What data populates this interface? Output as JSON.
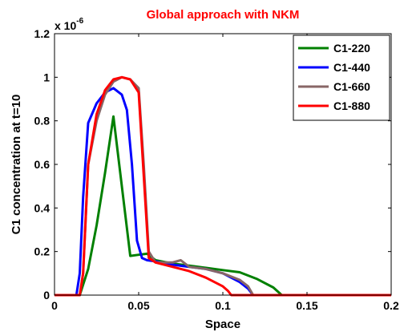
{
  "chart_data": {
    "type": "line",
    "title": "Global approach with NKM",
    "xlabel": "Space",
    "ylabel": "C1 concentration at t=10",
    "y_multiplier_label": "x 10",
    "y_multiplier_exponent": "-6",
    "xlim": [
      0,
      0.2
    ],
    "ylim": [
      0,
      1.2
    ],
    "x_ticks": [
      0,
      0.05,
      0.1,
      0.15,
      0.2
    ],
    "x_tick_labels": [
      "0",
      "0.05",
      "0.1",
      "0.15",
      "0.2"
    ],
    "y_ticks": [
      0,
      0.2,
      0.4,
      0.6,
      0.8,
      1.0,
      1.2
    ],
    "y_tick_labels": [
      "0",
      "0.2",
      "0.4",
      "0.6",
      "0.8",
      "1",
      "1.2"
    ],
    "legend_position": "top-right",
    "series": [
      {
        "name": "C1-220",
        "color": "#008000",
        "x": [
          0,
          0.015,
          0.02,
          0.025,
          0.03,
          0.035,
          0.04,
          0.045,
          0.05,
          0.055,
          0.06,
          0.07,
          0.08,
          0.09,
          0.1,
          0.11,
          0.12,
          0.13,
          0.135,
          0.2
        ],
        "y": [
          0,
          0,
          0.12,
          0.32,
          0.56,
          0.82,
          0.5,
          0.18,
          0.185,
          0.19,
          0.16,
          0.145,
          0.135,
          0.125,
          0.115,
          0.105,
          0.075,
          0.035,
          0,
          0
        ]
      },
      {
        "name": "C1-440",
        "color": "#0000ff",
        "x": [
          0,
          0.013,
          0.015,
          0.017,
          0.02,
          0.025,
          0.03,
          0.035,
          0.04,
          0.043,
          0.046,
          0.049,
          0.052,
          0.055,
          0.06,
          0.07,
          0.08,
          0.09,
          0.1,
          0.11,
          0.115,
          0.118,
          0.2
        ],
        "y": [
          0,
          0,
          0.1,
          0.45,
          0.79,
          0.88,
          0.93,
          0.95,
          0.92,
          0.85,
          0.6,
          0.25,
          0.17,
          0.16,
          0.155,
          0.14,
          0.13,
          0.12,
          0.1,
          0.06,
          0.03,
          0,
          0
        ]
      },
      {
        "name": "C1-660",
        "color": "#886666",
        "x": [
          0,
          0.015,
          0.017,
          0.02,
          0.025,
          0.03,
          0.035,
          0.04,
          0.045,
          0.05,
          0.053,
          0.056,
          0.06,
          0.07,
          0.075,
          0.08,
          0.09,
          0.1,
          0.11,
          0.115,
          0.118,
          0.2
        ],
        "y": [
          0,
          0,
          0.1,
          0.6,
          0.8,
          0.92,
          0.98,
          1.0,
          0.99,
          0.95,
          0.6,
          0.2,
          0.15,
          0.15,
          0.16,
          0.13,
          0.12,
          0.1,
          0.07,
          0.04,
          0,
          0
        ]
      },
      {
        "name": "C1-880",
        "color": "#ff0000",
        "x": [
          0,
          0.015,
          0.017,
          0.02,
          0.025,
          0.03,
          0.035,
          0.04,
          0.045,
          0.05,
          0.053,
          0.056,
          0.06,
          0.07,
          0.08,
          0.09,
          0.1,
          0.103,
          0.105,
          0.2
        ],
        "y": [
          0,
          0,
          0.1,
          0.6,
          0.83,
          0.94,
          0.99,
          1.0,
          0.99,
          0.93,
          0.55,
          0.17,
          0.15,
          0.13,
          0.11,
          0.08,
          0.04,
          0.02,
          0,
          0
        ]
      }
    ]
  }
}
